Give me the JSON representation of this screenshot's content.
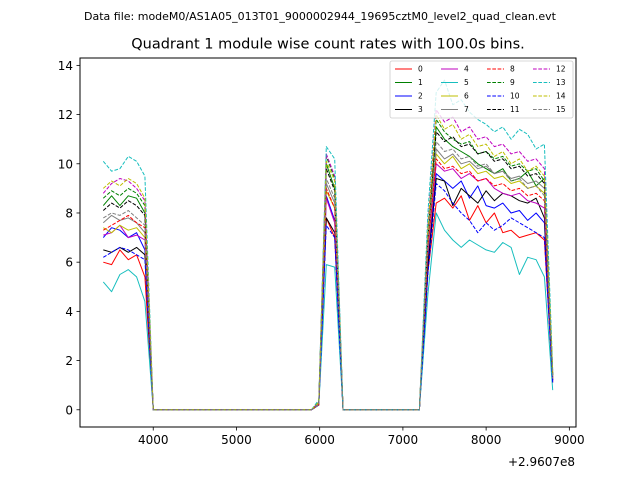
{
  "figure": {
    "suptitle": "Data file: modeM0/AS1A05_013T01_9000002944_19695cztM0_level2_quad_clean.evt"
  },
  "chart_data": {
    "type": "line",
    "title": "Quadrant 1 module wise count rates with 100.0s bins.",
    "xlabel": "",
    "ylabel": "",
    "x_offset_label": "+2.9607e8",
    "xlim": [
      3120,
      9080
    ],
    "ylim": [
      -0.7,
      14.3
    ],
    "xticks": [
      4000,
      5000,
      6000,
      7000,
      8000,
      9000
    ],
    "yticks": [
      0,
      2,
      4,
      6,
      8,
      10,
      12,
      14
    ],
    "grid": false,
    "legend": {
      "placement": "top-right",
      "columns": 4
    },
    "x_segments": [
      [
        3400,
        3500,
        3600,
        3700,
        3800,
        3900,
        4000
      ],
      [
        4000,
        4500,
        5000,
        5500,
        5900,
        5990
      ],
      [
        5990,
        6080,
        6180,
        6280
      ],
      [
        6280,
        6800,
        7200
      ],
      [
        7200,
        7300,
        7400,
        7500,
        7600,
        7700,
        7800,
        7900,
        8000,
        8100,
        8200,
        8300,
        8400,
        8500,
        8600,
        8700,
        8800
      ]
    ],
    "series": [
      {
        "name": "0",
        "color": "#ff0000",
        "dash": "solid",
        "segments": [
          [
            6.0,
            5.9,
            6.5,
            6.1,
            6.3,
            5.4,
            0.05
          ],
          [
            0,
            0,
            0,
            0,
            0,
            0.2
          ],
          [
            0.2,
            7.8,
            7.0,
            0.05
          ],
          [
            0,
            0,
            0
          ],
          [
            0.1,
            5.6,
            8.4,
            8.6,
            8.2,
            8.7,
            7.7,
            8.3,
            7.6,
            8.0,
            7.2,
            7.3,
            7.0,
            7.1,
            7.2,
            6.9,
            1.1
          ]
        ]
      },
      {
        "name": "1",
        "color": "#008000",
        "dash": "solid",
        "segments": [
          [
            8.3,
            8.7,
            8.3,
            8.7,
            8.6,
            8.0,
            0.05
          ],
          [
            0,
            0,
            0,
            0,
            0,
            0.3
          ],
          [
            0.3,
            10.0,
            9.0,
            0.05
          ],
          [
            0,
            0,
            0
          ],
          [
            0.1,
            7.0,
            11.5,
            11.0,
            10.7,
            10.5,
            10.3,
            10.0,
            9.8,
            9.6,
            9.8,
            9.3,
            9.4,
            9.7,
            9.1,
            9.4,
            1.4
          ]
        ]
      },
      {
        "name": "2",
        "color": "#0000ff",
        "dash": "solid",
        "segments": [
          [
            7.0,
            7.4,
            7.3,
            7.0,
            7.2,
            6.5,
            0.05
          ],
          [
            0,
            0,
            0,
            0,
            0,
            0.2
          ],
          [
            0.2,
            8.7,
            7.7,
            0.05
          ],
          [
            0,
            0,
            0
          ],
          [
            0.1,
            6.0,
            9.6,
            9.3,
            9.0,
            9.3,
            8.6,
            9.1,
            8.3,
            8.2,
            8.4,
            8.0,
            8.1,
            7.7,
            8.0,
            7.6,
            1.2
          ]
        ]
      },
      {
        "name": "3",
        "color": "#000000",
        "dash": "solid",
        "segments": [
          [
            6.5,
            6.4,
            6.6,
            6.4,
            6.6,
            6.3,
            0.05
          ],
          [
            0,
            0,
            0,
            0,
            0,
            0.2
          ],
          [
            0.2,
            7.8,
            7.2,
            0.05
          ],
          [
            0,
            0,
            0
          ],
          [
            0.1,
            5.8,
            9.4,
            9.3,
            8.3,
            9.0,
            8.7,
            8.4,
            8.9,
            8.5,
            8.8,
            8.7,
            8.5,
            8.4,
            8.6,
            7.8,
            1.2
          ]
        ]
      },
      {
        "name": "4",
        "color": "#bf00bf",
        "dash": "solid",
        "segments": [
          [
            7.1,
            7.2,
            7.5,
            7.0,
            7.1,
            6.9,
            0.05
          ],
          [
            0,
            0,
            0,
            0,
            0,
            0.2
          ],
          [
            0.2,
            8.6,
            7.6,
            0.05
          ],
          [
            0,
            0,
            0
          ],
          [
            0.1,
            6.4,
            10.0,
            9.7,
            9.8,
            9.4,
            9.6,
            9.3,
            9.4,
            9.0,
            8.8,
            8.7,
            8.8,
            8.5,
            8.4,
            8.2,
            1.2
          ]
        ]
      },
      {
        "name": "5",
        "color": "#17bebe",
        "dash": "solid",
        "segments": [
          [
            5.2,
            4.8,
            5.5,
            5.7,
            5.4,
            4.4,
            0.05
          ],
          [
            0,
            0,
            0,
            0,
            0,
            0.2
          ],
          [
            0.2,
            5.9,
            5.8,
            0.05
          ],
          [
            0,
            0,
            0
          ],
          [
            0.1,
            4.7,
            8.0,
            7.3,
            6.9,
            6.6,
            6.9,
            6.7,
            6.5,
            6.4,
            6.8,
            6.6,
            5.5,
            6.2,
            6.1,
            5.4,
            0.8
          ]
        ]
      },
      {
        "name": "6",
        "color": "#bfbf00",
        "dash": "solid",
        "segments": [
          [
            7.4,
            7.2,
            7.5,
            7.3,
            7.4,
            7.0,
            0.05
          ],
          [
            0,
            0,
            0,
            0,
            0,
            0.2
          ],
          [
            0.2,
            8.9,
            8.2,
            0.05
          ],
          [
            0,
            0,
            0
          ],
          [
            0.1,
            6.6,
            10.4,
            10.0,
            10.3,
            9.8,
            10.0,
            9.6,
            9.7,
            9.4,
            9.5,
            9.2,
            9.3,
            9.0,
            9.1,
            8.8,
            1.3
          ]
        ]
      },
      {
        "name": "7",
        "color": "#808080",
        "dash": "solid",
        "segments": [
          [
            7.6,
            7.9,
            7.7,
            7.8,
            7.6,
            7.2,
            0.05
          ],
          [
            0,
            0,
            0,
            0,
            0,
            0.2
          ],
          [
            0.2,
            9.2,
            8.4,
            0.05
          ],
          [
            0,
            0,
            0
          ],
          [
            0.1,
            6.8,
            10.6,
            10.2,
            10.4,
            10.0,
            10.1,
            9.8,
            9.9,
            9.6,
            9.7,
            9.4,
            9.5,
            9.2,
            9.3,
            9.0,
            1.3
          ]
        ]
      },
      {
        "name": "8",
        "color": "#ff0000",
        "dash": "dashed",
        "segments": [
          [
            7.3,
            7.5,
            7.7,
            7.9,
            7.6,
            7.4,
            0.05
          ],
          [
            0,
            0,
            0,
            0,
            0,
            0.2
          ],
          [
            0.2,
            9.0,
            8.2,
            0.05
          ],
          [
            0,
            0,
            0
          ],
          [
            0.1,
            6.7,
            10.2,
            9.8,
            9.9,
            9.6,
            9.7,
            9.3,
            9.4,
            9.1,
            9.2,
            8.9,
            9.0,
            8.7,
            8.8,
            8.5,
            1.3
          ]
        ]
      },
      {
        "name": "9",
        "color": "#008000",
        "dash": "dashed",
        "segments": [
          [
            8.6,
            8.9,
            8.7,
            9.0,
            8.8,
            8.3,
            0.05
          ],
          [
            0,
            0,
            0,
            0,
            0,
            0.3
          ],
          [
            0.3,
            10.3,
            9.4,
            0.05
          ],
          [
            0,
            0,
            0
          ],
          [
            0.1,
            7.3,
            11.8,
            11.3,
            11.0,
            10.8,
            10.9,
            10.4,
            10.5,
            10.2,
            10.3,
            9.9,
            10.0,
            9.7,
            9.8,
            9.3,
            1.4
          ]
        ]
      },
      {
        "name": "10",
        "color": "#0000ff",
        "dash": "dashed",
        "segments": [
          [
            6.2,
            6.4,
            6.6,
            6.5,
            6.3,
            6.1,
            0.05
          ],
          [
            0,
            0,
            0,
            0,
            0,
            0.2
          ],
          [
            0.2,
            7.5,
            7.0,
            0.05
          ],
          [
            0,
            0,
            0
          ],
          [
            0.1,
            5.5,
            9.2,
            8.9,
            8.4,
            8.0,
            7.7,
            7.2,
            7.6,
            7.3,
            7.5,
            7.8,
            7.6,
            7.4,
            7.2,
            7.0,
            1.1
          ]
        ]
      },
      {
        "name": "11",
        "color": "#000000",
        "dash": "dashed",
        "segments": [
          [
            8.1,
            8.4,
            8.2,
            8.5,
            8.3,
            7.9,
            0.05
          ],
          [
            0,
            0,
            0,
            0,
            0,
            0.3
          ],
          [
            0.3,
            9.8,
            8.9,
            0.05
          ],
          [
            0,
            0,
            0
          ],
          [
            0.1,
            7.0,
            11.3,
            10.9,
            11.1,
            10.7,
            10.8,
            10.4,
            10.5,
            10.1,
            10.2,
            9.8,
            9.9,
            9.5,
            9.6,
            9.2,
            1.4
          ]
        ]
      },
      {
        "name": "12",
        "color": "#bf00bf",
        "dash": "dashed",
        "segments": [
          [
            8.8,
            9.2,
            9.4,
            9.3,
            9.0,
            8.5,
            0.05
          ],
          [
            0,
            0,
            0,
            0,
            0,
            0.3
          ],
          [
            0.3,
            10.4,
            9.5,
            0.05
          ],
          [
            0,
            0,
            0
          ],
          [
            0.1,
            7.5,
            12.2,
            11.7,
            11.9,
            11.3,
            11.5,
            11.0,
            11.1,
            10.7,
            10.8,
            10.4,
            10.5,
            10.1,
            10.2,
            9.8,
            1.5
          ]
        ]
      },
      {
        "name": "13",
        "color": "#17bebe",
        "dash": "dashed",
        "segments": [
          [
            10.1,
            9.7,
            9.8,
            10.3,
            10.1,
            9.5,
            0.05
          ],
          [
            0,
            0,
            0,
            0,
            0,
            0.4
          ],
          [
            0.4,
            10.7,
            10.2,
            0.05
          ],
          [
            0,
            0,
            0
          ],
          [
            0.1,
            8.0,
            12.9,
            13.4,
            12.4,
            12.6,
            12.1,
            11.8,
            11.6,
            11.3,
            11.5,
            11.0,
            11.4,
            11.2,
            10.6,
            10.8,
            1.6
          ]
        ]
      },
      {
        "name": "14",
        "color": "#bfbf00",
        "dash": "dashed",
        "segments": [
          [
            9.0,
            9.3,
            9.1,
            9.4,
            9.2,
            8.6,
            0.05
          ],
          [
            0,
            0,
            0,
            0,
            0,
            0.3
          ],
          [
            0.3,
            10.1,
            9.3,
            0.05
          ],
          [
            0,
            0,
            0
          ],
          [
            0.1,
            7.3,
            12.0,
            11.4,
            11.6,
            11.0,
            11.2,
            10.7,
            10.8,
            10.3,
            10.5,
            10.0,
            10.2,
            9.7,
            9.9,
            9.5,
            1.5
          ]
        ]
      },
      {
        "name": "15",
        "color": "#808080",
        "dash": "dashed",
        "segments": [
          [
            7.8,
            8.0,
            7.9,
            8.1,
            7.8,
            7.5,
            0.05
          ],
          [
            0,
            0,
            0,
            0,
            0,
            0.2
          ],
          [
            0.2,
            9.4,
            8.6,
            0.05
          ],
          [
            0,
            0,
            0
          ],
          [
            0.1,
            6.9,
            10.9,
            10.5,
            10.6,
            10.2,
            10.3,
            9.9,
            10.0,
            9.6,
            9.7,
            9.3,
            9.4,
            9.0,
            9.1,
            8.7,
            1.3
          ]
        ]
      }
    ]
  }
}
